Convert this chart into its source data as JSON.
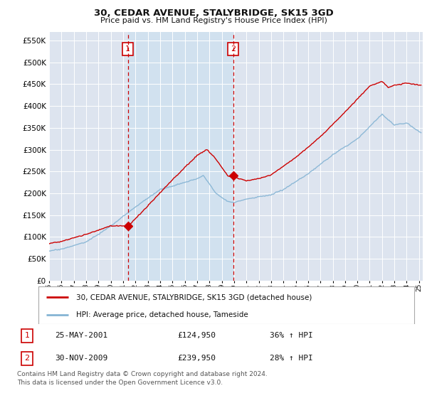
{
  "title": "30, CEDAR AVENUE, STALYBRIDGE, SK15 3GD",
  "subtitle": "Price paid vs. HM Land Registry's House Price Index (HPI)",
  "ylim": [
    0,
    570000
  ],
  "yticks": [
    0,
    50000,
    100000,
    150000,
    200000,
    250000,
    300000,
    350000,
    400000,
    450000,
    500000,
    550000
  ],
  "background_color": "#ffffff",
  "plot_bg_color": "#dde4ef",
  "grid_color": "#ffffff",
  "fill_color": "#ccd9ee",
  "sale1_x": 2001.38,
  "sale1_price": 124950,
  "sale2_x": 2009.92,
  "sale2_price": 239950,
  "vline_color": "#cc0000",
  "red_line_color": "#cc0000",
  "blue_line_color": "#85b4d4",
  "legend_sale_label": "30, CEDAR AVENUE, STALYBRIDGE, SK15 3GD (detached house)",
  "legend_hpi_label": "HPI: Average price, detached house, Tameside",
  "table_row1": [
    "1",
    "25-MAY-2001",
    "£124,950",
    "36% ↑ HPI"
  ],
  "table_row2": [
    "2",
    "30-NOV-2009",
    "£239,950",
    "28% ↑ HPI"
  ],
  "footer_text": "Contains HM Land Registry data © Crown copyright and database right 2024.\nThis data is licensed under the Open Government Licence v3.0.",
  "xmin": 1995.0,
  "xmax": 2025.3
}
